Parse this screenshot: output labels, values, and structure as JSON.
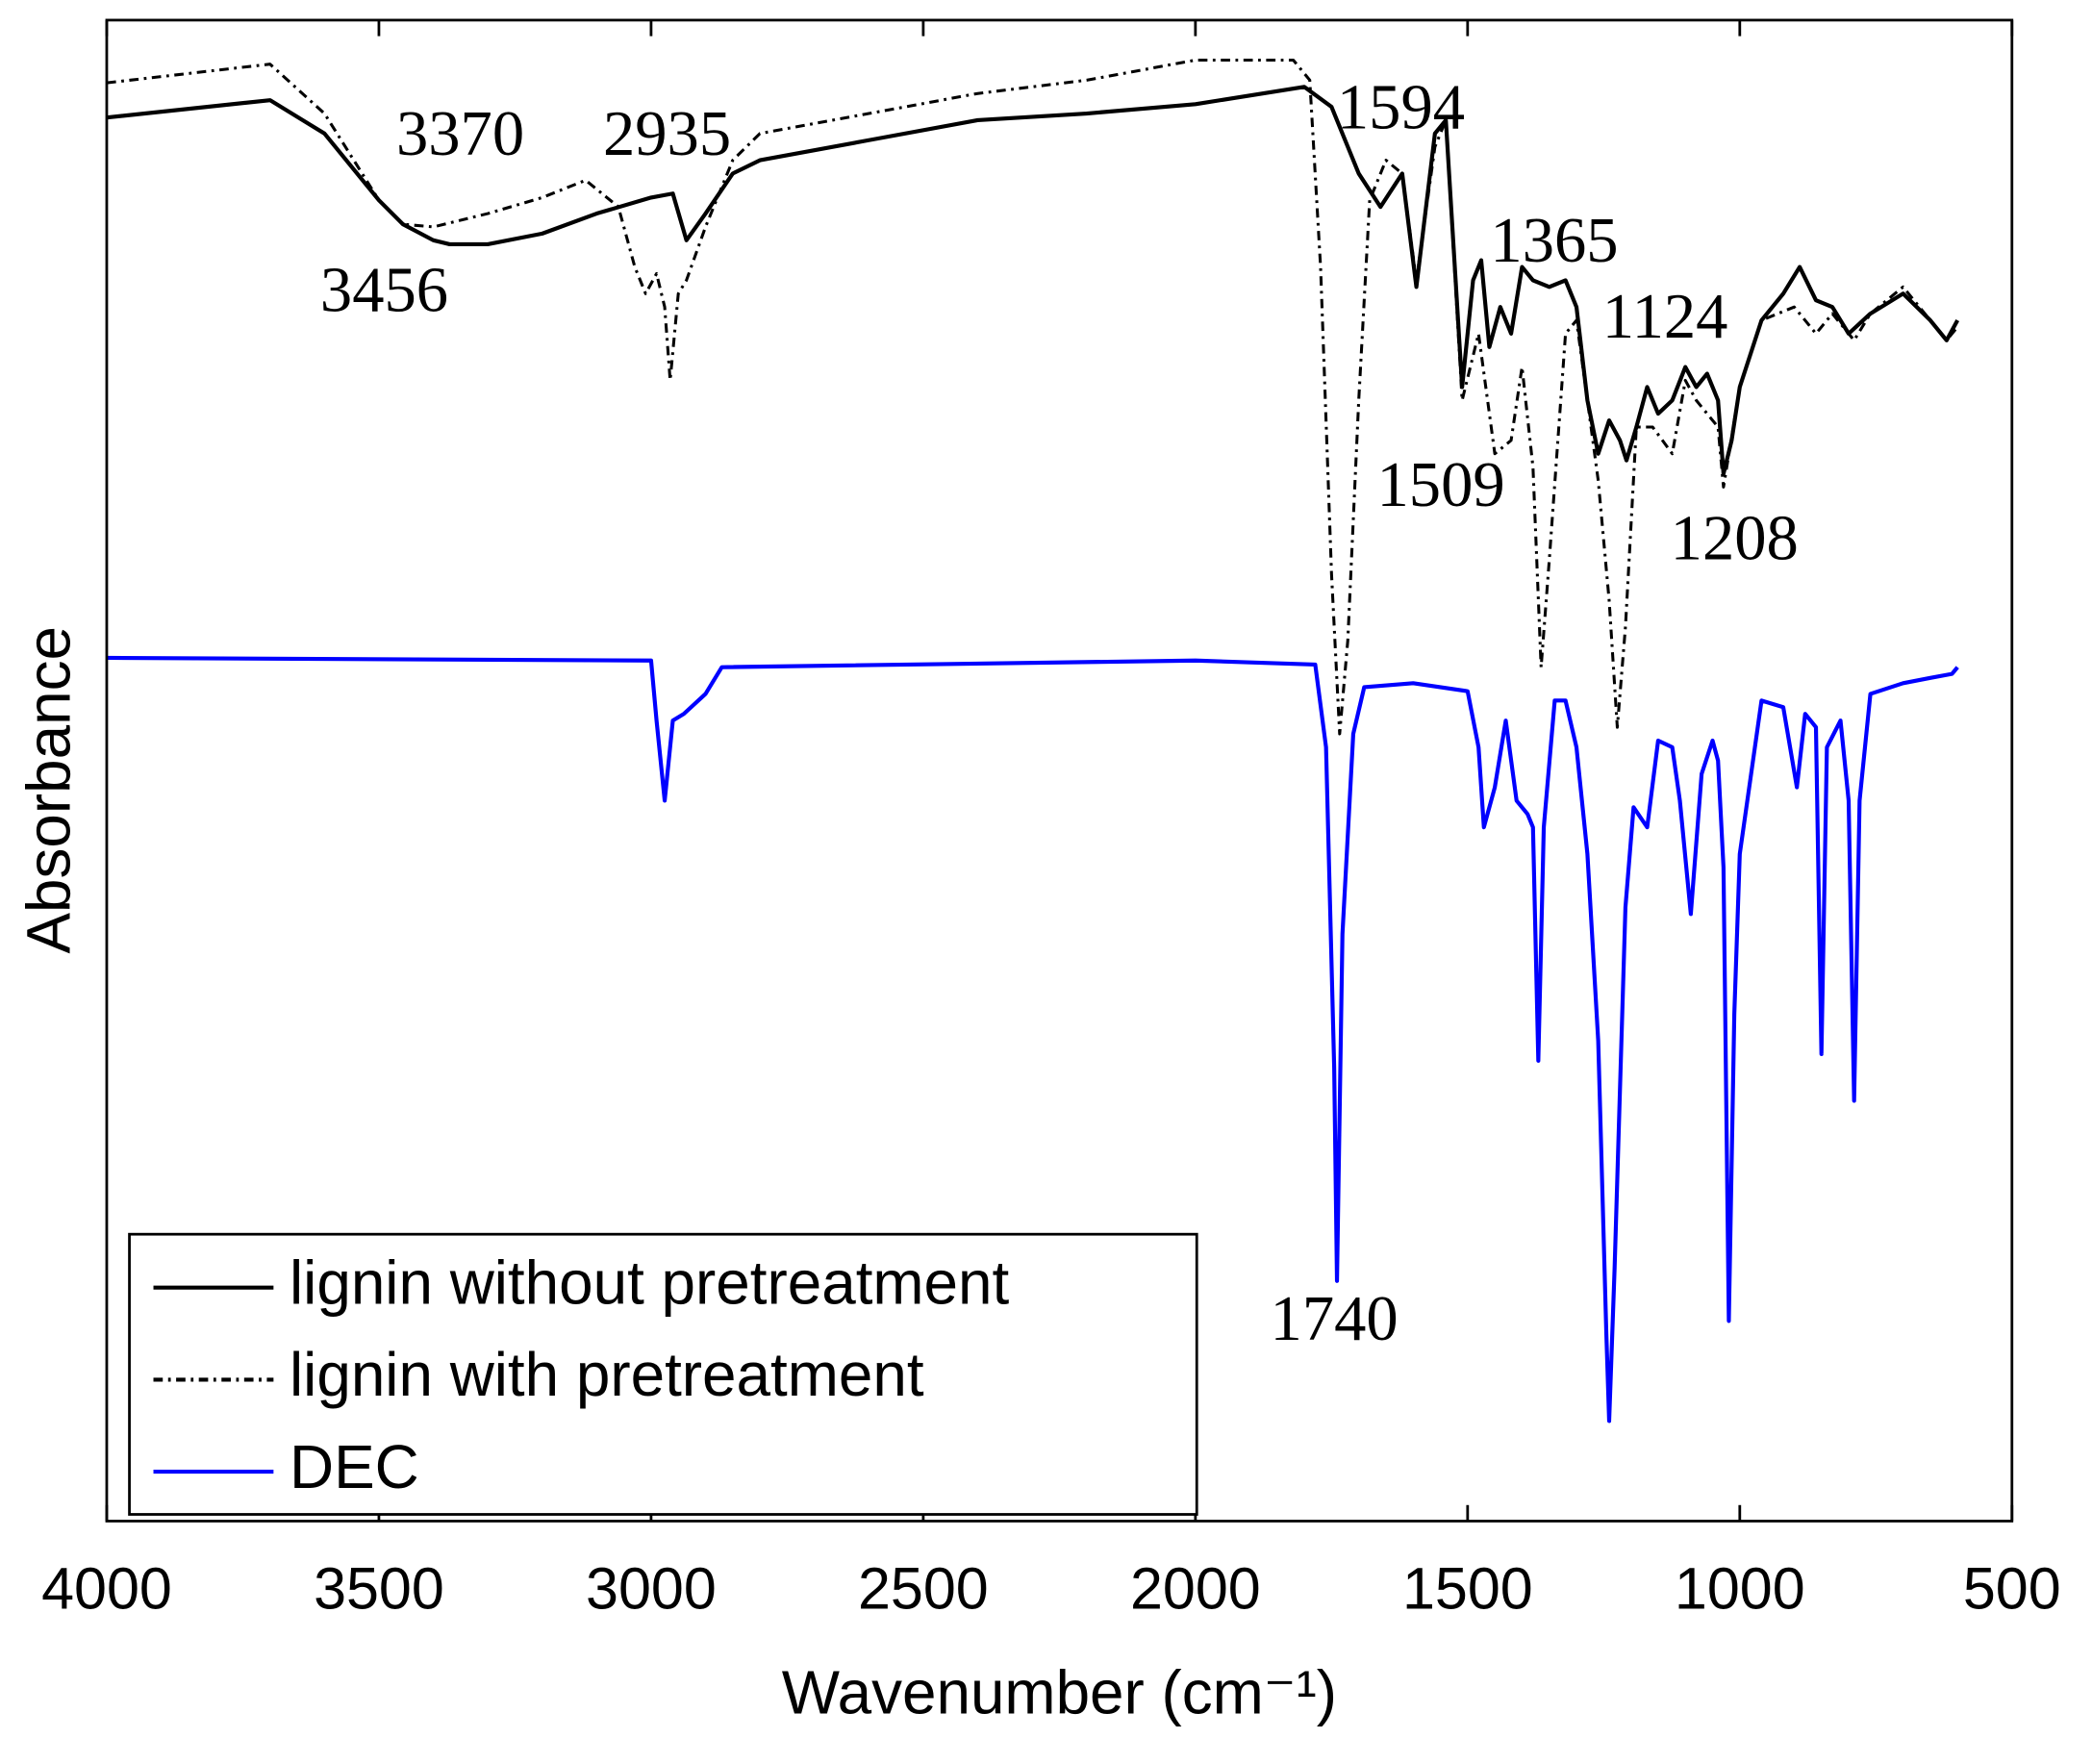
{
  "chart_data": {
    "type": "line",
    "xlabel": "Wavenumber (cm⁻¹)",
    "ylabel": "Absorbance",
    "xlim": [
      4000,
      500
    ],
    "xticks": [
      4000,
      3500,
      3000,
      2500,
      2000,
      1500,
      1000,
      500
    ],
    "ylim": [
      0,
      1125
    ],
    "grid": false,
    "legend": "lower left",
    "annotations": [
      "3370",
      "2935",
      "3456",
      "1594",
      "1365",
      "1124",
      "1509",
      "1208",
      "1740"
    ],
    "series": [
      {
        "name": "lignin without pretreatment",
        "color": "#000000",
        "style": "solid",
        "x": [
          4000,
          3700,
          3600,
          3500,
          3456,
          3400,
          3370,
          3300,
          3200,
          3100,
          3000,
          2960,
          2935,
          2900,
          2850,
          2800,
          2600,
          2400,
          2200,
          2000,
          1800,
          1750,
          1700,
          1660,
          1620,
          1594,
          1560,
          1540,
          1510,
          1490,
          1475,
          1460,
          1440,
          1420,
          1400,
          1380,
          1350,
          1320,
          1300,
          1280,
          1260,
          1240,
          1220,
          1208,
          1190,
          1170,
          1150,
          1124,
          1100,
          1080,
          1060,
          1040,
          1030,
          1015,
          1000,
          960,
          920,
          890,
          860,
          830,
          800,
          760,
          700,
          650,
          620,
          600
        ],
        "values": [
          1052,
          1065,
          1040,
          990,
          972,
          960,
          957,
          957,
          965,
          980,
          992,
          995,
          960,
          980,
          1010,
          1020,
          1035,
          1050,
          1055,
          1062,
          1075,
          1060,
          1010,
          985,
          1010,
          925,
          1040,
          1050,
          850,
          930,
          945,
          880,
          910,
          890,
          940,
          930,
          925,
          930,
          910,
          840,
          800,
          825,
          810,
          795,
          820,
          850,
          830,
          840,
          865,
          850,
          860,
          840,
          785,
          810,
          850,
          900,
          920,
          940,
          915,
          910,
          890,
          905,
          920,
          900,
          885,
          900
        ]
      },
      {
        "name": "lignin with pretreatment",
        "color": "#000000",
        "style": "dashdot",
        "x": [
          4000,
          3700,
          3600,
          3500,
          3456,
          3400,
          3300,
          3200,
          3120,
          3060,
          3030,
          3010,
          2990,
          2975,
          2965,
          2950,
          2935,
          2900,
          2850,
          2800,
          2600,
          2400,
          2200,
          2000,
          1820,
          1790,
          1770,
          1750,
          1735,
          1720,
          1700,
          1680,
          1650,
          1620,
          1594,
          1560,
          1540,
          1510,
          1480,
          1450,
          1420,
          1400,
          1380,
          1365,
          1350,
          1320,
          1300,
          1280,
          1260,
          1240,
          1225,
          1210,
          1190,
          1160,
          1124,
          1100,
          1080,
          1040,
          1030,
          1000,
          960,
          900,
          860,
          830,
          790,
          760,
          700,
          650,
          620,
          600
        ],
        "values": [
          1078,
          1092,
          1055,
          990,
          972,
          970,
          980,
          992,
          1005,
          985,
          940,
          920,
          935,
          910,
          855,
          920,
          930,
          970,
          1020,
          1040,
          1055,
          1070,
          1080,
          1095,
          1095,
          1080,
          940,
          710,
          590,
          660,
          840,
          990,
          1020,
          1010,
          930,
          1030,
          1050,
          840,
          890,
          800,
          810,
          865,
          790,
          640,
          720,
          890,
          900,
          840,
          780,
          690,
          595,
          670,
          820,
          820,
          800,
          855,
          840,
          820,
          775,
          850,
          900,
          910,
          890,
          905,
          885,
          905,
          925,
          900,
          885,
          895
        ]
      },
      {
        "name": "DEC",
        "color": "#0000ff",
        "style": "solid",
        "x": [
          4000,
          3000,
          2990,
          2975,
          2960,
          2940,
          2900,
          2870,
          2000,
          1780,
          1760,
          1745,
          1740,
          1730,
          1710,
          1690,
          1600,
          1500,
          1480,
          1470,
          1450,
          1430,
          1410,
          1390,
          1380,
          1370,
          1360,
          1340,
          1320,
          1300,
          1280,
          1260,
          1245,
          1240,
          1230,
          1210,
          1195,
          1170,
          1150,
          1124,
          1110,
          1090,
          1070,
          1050,
          1040,
          1030,
          1020,
          1010,
          1000,
          960,
          920,
          895,
          880,
          860,
          850,
          840,
          815,
          800,
          790,
          780,
          760,
          700,
          650,
          610,
          600
        ],
        "values": [
          647,
          645,
          600,
          540,
          600,
          605,
          620,
          640,
          645,
          642,
          580,
          340,
          180,
          440,
          590,
          625,
          628,
          622,
          580,
          520,
          550,
          600,
          540,
          530,
          520,
          345,
          520,
          615,
          615,
          580,
          500,
          360,
          140,
          75,
          190,
          460,
          535,
          520,
          585,
          580,
          540,
          455,
          560,
          585,
          570,
          490,
          150,
          380,
          500,
          615,
          610,
          550,
          605,
          595,
          350,
          580,
          600,
          540,
          315,
          540,
          620,
          628,
          632,
          635,
          640
        ]
      }
    ]
  }
}
